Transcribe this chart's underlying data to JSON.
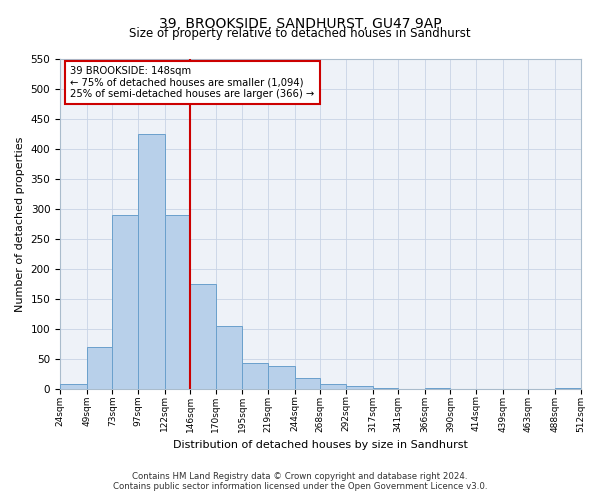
{
  "title": "39, BROOKSIDE, SANDHURST, GU47 9AP",
  "subtitle": "Size of property relative to detached houses in Sandhurst",
  "xlabel": "Distribution of detached houses by size in Sandhurst",
  "ylabel": "Number of detached properties",
  "bar_edges": [
    24,
    49,
    73,
    97,
    122,
    146,
    170,
    195,
    219,
    244,
    268,
    292,
    317,
    341,
    366,
    390,
    414,
    439,
    463,
    488,
    512
  ],
  "bar_heights": [
    8,
    70,
    290,
    425,
    290,
    175,
    105,
    43,
    38,
    18,
    8,
    5,
    1,
    0,
    1,
    0,
    0,
    0,
    0,
    1
  ],
  "tick_labels": [
    "24sqm",
    "49sqm",
    "73sqm",
    "97sqm",
    "122sqm",
    "146sqm",
    "170sqm",
    "195sqm",
    "219sqm",
    "244sqm",
    "268sqm",
    "292sqm",
    "317sqm",
    "341sqm",
    "366sqm",
    "390sqm",
    "414sqm",
    "439sqm",
    "463sqm",
    "488sqm",
    "512sqm"
  ],
  "vline_x": 146,
  "ylim": [
    0,
    550
  ],
  "yticks": [
    0,
    50,
    100,
    150,
    200,
    250,
    300,
    350,
    400,
    450,
    500,
    550
  ],
  "bar_color": "#b8d0ea",
  "bar_edge_color": "#6aa0cc",
  "vline_color": "#cc0000",
  "annotation_title": "39 BROOKSIDE: 148sqm",
  "annotation_line1": "← 75% of detached houses are smaller (1,094)",
  "annotation_line2": "25% of semi-detached houses are larger (366) →",
  "annotation_box_color": "#cc0000",
  "footnote1": "Contains HM Land Registry data © Crown copyright and database right 2024.",
  "footnote2": "Contains public sector information licensed under the Open Government Licence v3.0.",
  "background_color": "#eef2f8",
  "grid_color": "#c8d4e6"
}
